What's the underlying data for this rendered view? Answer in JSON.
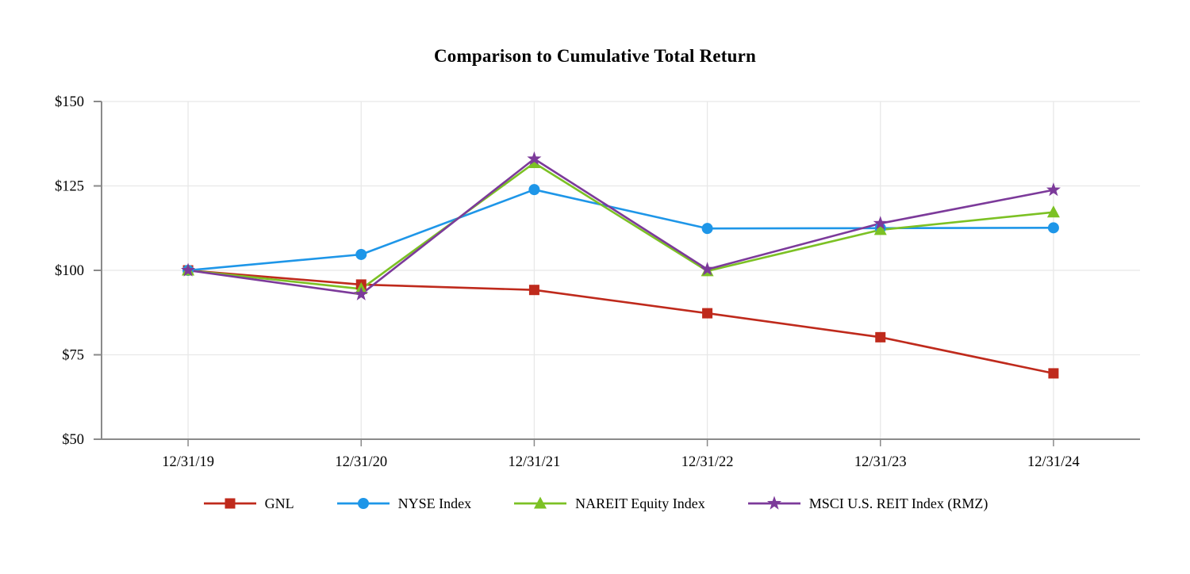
{
  "title": "Comparison to Cumulative Total Return",
  "chart_data": {
    "type": "line",
    "title": "Comparison to Cumulative Total Return",
    "categories": [
      "12/31/19",
      "12/31/20",
      "12/31/21",
      "12/31/22",
      "12/31/23",
      "12/31/24"
    ],
    "series": [
      {
        "name": "GNL",
        "marker": "square",
        "color": "#bf2a1c",
        "values": [
          100.0,
          95.8,
          94.2,
          87.3,
          80.2,
          69.5
        ]
      },
      {
        "name": "NYSE Index",
        "marker": "circle",
        "color": "#1e96e8",
        "values": [
          100.0,
          104.7,
          123.9,
          112.4,
          112.5,
          112.6
        ]
      },
      {
        "name": "NAREIT Equity Index",
        "marker": "triangle",
        "color": "#7cc124",
        "values": [
          100.0,
          94.5,
          131.8,
          99.8,
          112.0,
          117.2
        ]
      },
      {
        "name": "MSCI U.S. REIT Index (RMZ)",
        "marker": "star",
        "color": "#7c3a9a",
        "values": [
          100.0,
          92.9,
          133.0,
          100.3,
          113.9,
          123.8
        ]
      }
    ],
    "xlabel": "",
    "ylabel": "",
    "ylim": [
      50,
      150
    ],
    "y_ticks": [
      50,
      75,
      100,
      125,
      150
    ],
    "y_tick_labels": [
      "$50",
      "$75",
      "$100",
      "$125",
      "$150"
    ],
    "grid": true,
    "legend_position": "bottom",
    "colors": {
      "axis": "#8a8a8a",
      "grid": "#e8e8e8",
      "text": "#000000",
      "background": "#ffffff"
    }
  }
}
